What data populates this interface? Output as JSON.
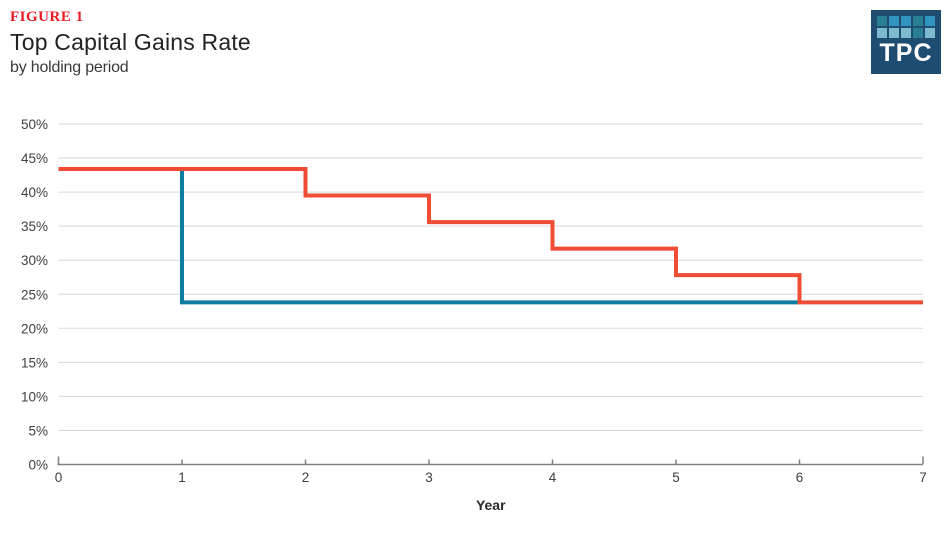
{
  "header": {
    "figure_label": "FIGURE 1",
    "figure_label_color": "#e81c24",
    "title": "Top Capital Gains Rate",
    "subtitle": "by holding period"
  },
  "logo": {
    "text": "TPC",
    "background": "#1f4d72",
    "grid_colors": [
      [
        "#2a7f93",
        "#3193bf",
        "#3193bf",
        "#2a7f93",
        "#3193bf"
      ],
      [
        "#7db9cf",
        "#7db9cf",
        "#7db9cf",
        "#2a7f93",
        "#7db9cf"
      ]
    ]
  },
  "chart_data": {
    "type": "line",
    "subtype": "step",
    "title": "Top Capital Gains Rate",
    "subtitle": "by holding period",
    "xlabel": "Year",
    "ylabel": "",
    "xlim": [
      0,
      7
    ],
    "ylim": [
      0,
      50
    ],
    "grid": "horizontal",
    "legend": "none",
    "xticks": {
      "values": [
        0,
        1,
        2,
        3,
        4,
        5,
        6,
        7
      ],
      "labels": [
        "0",
        "1",
        "2",
        "3",
        "4",
        "5",
        "6",
        "7"
      ]
    },
    "yticks": {
      "values": [
        0,
        5,
        10,
        15,
        20,
        25,
        30,
        35,
        40,
        45,
        50
      ],
      "labels": [
        "0%",
        "5%",
        "10%",
        "15%",
        "20%",
        "25%",
        "30%",
        "35%",
        "40%",
        "45%",
        "50%"
      ]
    },
    "series": [
      {
        "name": "blue-line",
        "color": "#0d7ea2",
        "points": [
          [
            1,
            43.4
          ],
          [
            1,
            23.8
          ],
          [
            6,
            23.8
          ]
        ]
      },
      {
        "name": "orange-line",
        "color": "#ee4c34",
        "points": [
          [
            0,
            43.4
          ],
          [
            2,
            43.4
          ],
          [
            2,
            39.5
          ],
          [
            3,
            39.5
          ],
          [
            3,
            35.6
          ],
          [
            4,
            35.6
          ],
          [
            4,
            31.7
          ],
          [
            5,
            31.7
          ],
          [
            5,
            27.8
          ],
          [
            6,
            27.8
          ],
          [
            6,
            23.8
          ],
          [
            7,
            23.8
          ]
        ]
      }
    ],
    "axis_color": "#808080",
    "grid_color": "#d9d9d9",
    "tick_label_color": "#404040",
    "xlabel_color": "#2b2b2b"
  }
}
